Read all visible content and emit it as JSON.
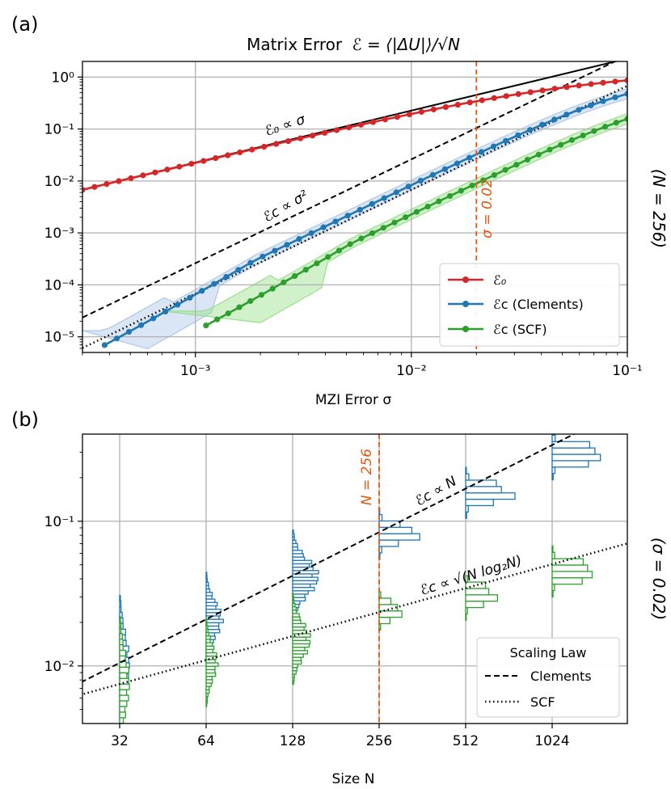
{
  "chart_data": [
    {
      "panel_label": "(a)",
      "type": "line",
      "title": "Matrix Error",
      "title_formula": "ℰ = ⟨|ΔU|⟩/√N",
      "xlabel": "MZI Error σ",
      "ylabel": "",
      "side_label": "(N = 256)",
      "xscale": "log",
      "yscale": "log",
      "xlim": [
        0.0003,
        0.1
      ],
      "ylim": [
        5e-06,
        2
      ],
      "xticks": [
        0.001,
        0.01,
        0.1
      ],
      "xtick_labels": [
        "10⁻³",
        "10⁻²",
        "10⁻¹"
      ],
      "yticks": [
        1e-05,
        0.0001,
        0.001,
        0.01,
        0.1,
        1
      ],
      "ytick_labels": [
        "10⁻⁵",
        "10⁻⁴",
        "10⁻³",
        "10⁻²",
        "10⁻¹",
        "10⁰"
      ],
      "grid": true,
      "vline": {
        "x": 0.02,
        "label": "σ = 0.02",
        "color": "#e6550d"
      },
      "fits": [
        {
          "name": "ℰ₀ ∝ σ",
          "style": "solid",
          "color": "#000000",
          "x_range": [
            0.0003,
            0.1
          ],
          "y_at_x0": 0.0068,
          "slope": 1
        },
        {
          "name": "ℰc ∝ σ²",
          "style": "dashed",
          "color": "#000000",
          "x_range": [
            0.0003,
            0.1
          ],
          "y_at_x0": 2.35e-05,
          "slope": 2
        },
        {
          "name": "SCF fit",
          "style": "dotted",
          "color": "#000000",
          "x_range": [
            0.0003,
            0.1
          ],
          "y_at_x0": 6.1e-06,
          "slope": 2
        }
      ],
      "series": [
        {
          "name": "ℰ₀",
          "color": "#d62728",
          "x_start": 0.0003,
          "x_end": 0.1,
          "points": 46,
          "start_value": 0.0068,
          "slope": 1,
          "saturation": 1.4
        },
        {
          "name": "ℰc (Clements)",
          "color": "#1f77b4",
          "x_start": 0.00038,
          "x_end": 0.1,
          "points": 44,
          "start_value": 5.5e-06,
          "slope": 2,
          "floor_sigma": 0.00038,
          "saturation": 1.1
        },
        {
          "name": "ℰc (SCF)",
          "color": "#2ca02c",
          "x_start": 0.00112,
          "x_end": 0.1,
          "points": 39,
          "start_value": 1.3e-05,
          "slope": 2,
          "floor_sigma": 0.00108,
          "saturation": 0.5
        }
      ],
      "bands": [
        {
          "series": "ℰc (Clements)",
          "color": "#aec7e8",
          "upper_sigma_start": 0.0003,
          "lower_sigma_start": 0.0006
        },
        {
          "series": "ℰc (SCF)",
          "color": "#98df8a",
          "upper_sigma_start": 0.0007,
          "lower_sigma_start": 0.002
        }
      ],
      "annotations": [
        {
          "text": "ℰ₀ ∝ σ"
        },
        {
          "text": "ℰc ∝ σ²"
        }
      ],
      "legend": {
        "position": "lower-right",
        "entries": [
          "ℰ₀",
          "ℰc (Clements)",
          "ℰc (SCF)"
        ]
      }
    },
    {
      "panel_label": "(b)",
      "type": "histogram",
      "xlabel": "Size N",
      "side_label": "(σ = 0.02)",
      "xscale": "log2",
      "yscale": "log",
      "ylim": [
        0.004,
        0.4
      ],
      "categories": [
        "32",
        "64",
        "128",
        "256",
        "512",
        "1024"
      ],
      "sizes": [
        32,
        64,
        128,
        256,
        512,
        1024
      ],
      "yticks": [
        0.01,
        0.1
      ],
      "ytick_labels": [
        "10⁻²",
        "10⁻¹"
      ],
      "grid": true,
      "vline": {
        "x": 256,
        "label": "N = 256",
        "color": "#e6550d"
      },
      "fits": [
        {
          "name": "Clements",
          "style": "dashed",
          "law": "ℰc ∝ N",
          "y_at_N32": 0.0105,
          "slope": 1
        },
        {
          "name": "SCF",
          "style": "dotted",
          "law": "ℰc ∝ √(N log₂N)",
          "y_at_N32": 0.0075,
          "slope": 0.55
        }
      ],
      "series": [
        {
          "name": "Clements",
          "color": "#1f77b4",
          "modes": [
            0.0105,
            0.021,
            0.041,
            0.082,
            0.157,
            0.29
          ],
          "max_length": [
            0.12,
            0.2,
            0.32,
            0.5,
            0.62,
            0.7
          ]
        },
        {
          "name": "SCF",
          "color": "#2ca02c",
          "modes": [
            0.0075,
            0.0105,
            0.015,
            0.024,
            0.031,
            0.045
          ],
          "max_length": [
            0.12,
            0.14,
            0.22,
            0.28,
            0.4,
            0.58
          ]
        }
      ],
      "annotations": [
        {
          "text": "ℰc ∝ N"
        },
        {
          "text": "ℰc ∝ √(N log₂N)"
        }
      ],
      "legend": {
        "position": "lower-right",
        "title": "Scaling Law",
        "entries": [
          "Clements",
          "SCF"
        ]
      }
    }
  ]
}
